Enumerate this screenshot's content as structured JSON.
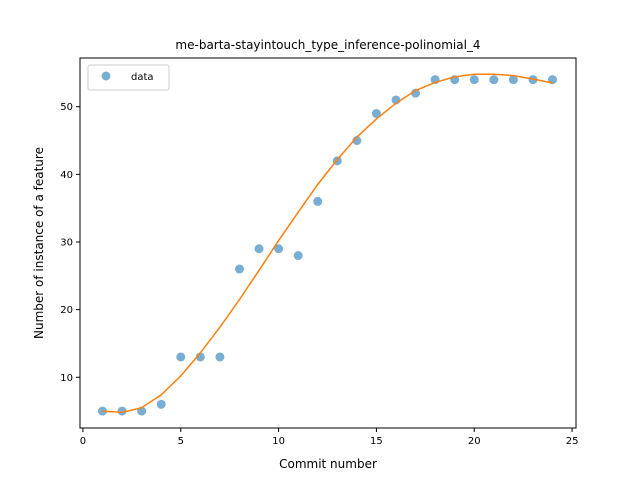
{
  "chart_data": {
    "type": "scatter",
    "title": "me-barta-stayintouch_type_inference-polinomial_4",
    "xlabel": "Commit number",
    "ylabel": "Number of instance of a feature",
    "xlim": [
      -0.15,
      25.2
    ],
    "ylim": [
      2.5,
      57.2
    ],
    "xticks": [
      0,
      5,
      10,
      15,
      20,
      25
    ],
    "yticks": [
      10,
      20,
      30,
      40,
      50
    ],
    "grid": false,
    "legend": {
      "position": "top-left",
      "entries": [
        "data"
      ]
    },
    "series": [
      {
        "name": "data",
        "kind": "points",
        "color": "#1f77b4",
        "x": [
          1,
          2,
          3,
          4,
          5,
          6,
          7,
          8,
          9,
          10,
          11,
          12,
          13,
          14,
          15,
          16,
          17,
          18,
          19,
          20,
          21,
          22,
          23,
          24
        ],
        "y": [
          5,
          5,
          5,
          6,
          13,
          13,
          13,
          26,
          29,
          29,
          28,
          36,
          42,
          45,
          49,
          51,
          52,
          54,
          54,
          54,
          54,
          54,
          54,
          54
        ]
      },
      {
        "kind": "fit-line",
        "color": "#ff7f0e",
        "x": [
          1,
          2,
          3,
          4,
          5,
          6,
          7,
          8,
          9,
          10,
          11,
          12,
          13,
          14,
          15,
          16,
          17,
          18,
          19,
          20,
          21,
          22,
          23,
          24
        ],
        "y": [
          5.0,
          4.8,
          5.5,
          7.4,
          10.2,
          13.6,
          17.4,
          21.5,
          25.8,
          30.2,
          34.4,
          38.5,
          42.2,
          45.5,
          48.2,
          50.5,
          52.4,
          53.6,
          54.4,
          54.8,
          54.8,
          54.6,
          54.1,
          53.5
        ]
      }
    ]
  }
}
